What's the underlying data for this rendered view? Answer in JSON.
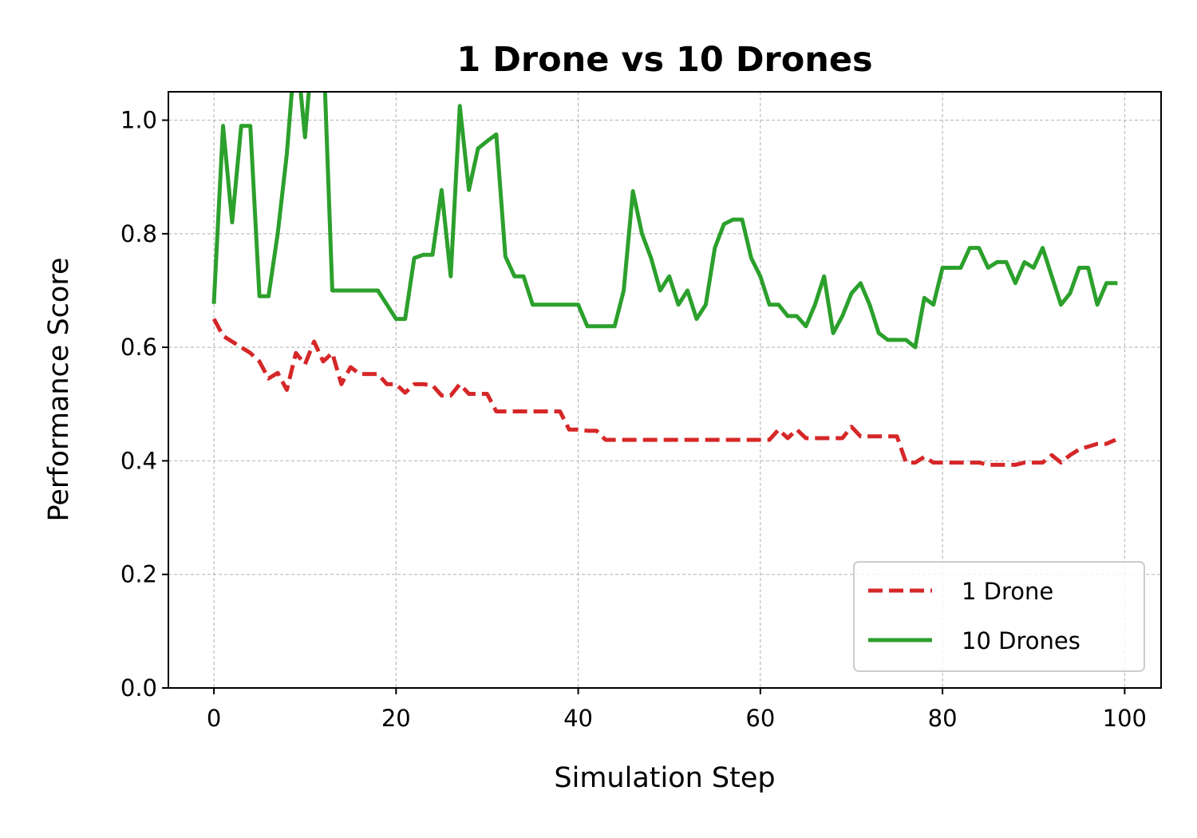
{
  "chart_data": {
    "type": "line",
    "title": "1 Drone vs 10 Drones",
    "xlabel": "Simulation Step",
    "ylabel": "Performance Score",
    "xlim": [
      -5,
      104
    ],
    "ylim": [
      0,
      1.05
    ],
    "xticks": [
      0,
      20,
      40,
      60,
      80,
      100
    ],
    "yticks": [
      0.0,
      0.2,
      0.4,
      0.6,
      0.8,
      1.0
    ],
    "xtick_labels": [
      "0",
      "20",
      "40",
      "60",
      "80",
      "100"
    ],
    "ytick_labels": [
      "0.0",
      "0.2",
      "0.4",
      "0.6",
      "0.8",
      "1.0"
    ],
    "grid": true,
    "legend_position": "lower-right",
    "x": [
      0,
      1,
      2,
      3,
      4,
      5,
      6,
      7,
      8,
      9,
      10,
      11,
      12,
      13,
      14,
      15,
      16,
      17,
      18,
      19,
      20,
      21,
      22,
      23,
      24,
      25,
      26,
      27,
      28,
      29,
      30,
      31,
      32,
      33,
      34,
      35,
      36,
      37,
      38,
      39,
      40,
      41,
      42,
      43,
      44,
      45,
      46,
      47,
      48,
      49,
      50,
      51,
      52,
      53,
      54,
      55,
      56,
      57,
      58,
      59,
      60,
      61,
      62,
      63,
      64,
      65,
      66,
      67,
      68,
      69,
      70,
      71,
      72,
      73,
      74,
      75,
      76,
      77,
      78,
      79,
      80,
      81,
      82,
      83,
      84,
      85,
      86,
      87,
      88,
      89,
      90,
      91,
      92,
      93,
      94,
      95,
      96,
      97,
      98,
      99
    ],
    "series": [
      {
        "name": "1 Drone",
        "color": "#d62728",
        "style": "dashed",
        "values": [
          0.65,
          0.62,
          0.61,
          0.6,
          0.59,
          0.575,
          0.545,
          0.555,
          0.525,
          0.59,
          0.57,
          0.61,
          0.575,
          0.59,
          0.535,
          0.565,
          0.553,
          0.553,
          0.553,
          0.535,
          0.535,
          0.52,
          0.535,
          0.535,
          0.533,
          0.515,
          0.515,
          0.535,
          0.518,
          0.518,
          0.518,
          0.487,
          0.487,
          0.487,
          0.487,
          0.487,
          0.487,
          0.487,
          0.487,
          0.455,
          0.455,
          0.453,
          0.453,
          0.437,
          0.437,
          0.437,
          0.437,
          0.437,
          0.437,
          0.437,
          0.437,
          0.437,
          0.437,
          0.437,
          0.437,
          0.437,
          0.437,
          0.437,
          0.437,
          0.437,
          0.437,
          0.437,
          0.455,
          0.44,
          0.455,
          0.44,
          0.44,
          0.44,
          0.44,
          0.44,
          0.46,
          0.443,
          0.443,
          0.443,
          0.443,
          0.443,
          0.397,
          0.397,
          0.407,
          0.397,
          0.397,
          0.397,
          0.397,
          0.397,
          0.397,
          0.393,
          0.393,
          0.393,
          0.393,
          0.397,
          0.397,
          0.397,
          0.41,
          0.397,
          0.41,
          0.42,
          0.425,
          0.43,
          0.43,
          0.437
        ]
      },
      {
        "name": "10 Drones",
        "color": "#2ca02c",
        "style": "solid",
        "values": [
          0.68,
          0.99,
          0.82,
          0.99,
          0.99,
          0.69,
          0.69,
          0.8,
          0.94,
          1.14,
          0.97,
          1.16,
          1.14,
          0.7,
          0.7,
          0.7,
          0.7,
          0.7,
          0.7,
          0.675,
          0.65,
          0.65,
          0.757,
          0.763,
          0.763,
          0.877,
          0.725,
          1.025,
          0.877,
          0.95,
          0.963,
          0.975,
          0.76,
          0.725,
          0.725,
          0.675,
          0.675,
          0.675,
          0.675,
          0.675,
          0.675,
          0.637,
          0.637,
          0.637,
          0.637,
          0.7,
          0.875,
          0.8,
          0.757,
          0.7,
          0.725,
          0.675,
          0.7,
          0.65,
          0.675,
          0.775,
          0.817,
          0.825,
          0.825,
          0.757,
          0.725,
          0.675,
          0.675,
          0.655,
          0.655,
          0.637,
          0.675,
          0.725,
          0.625,
          0.655,
          0.695,
          0.713,
          0.675,
          0.625,
          0.613,
          0.613,
          0.613,
          0.6,
          0.687,
          0.675,
          0.74,
          0.74,
          0.74,
          0.775,
          0.775,
          0.74,
          0.75,
          0.75,
          0.713,
          0.75,
          0.74,
          0.775,
          0.725,
          0.675,
          0.695,
          0.74,
          0.74,
          0.675,
          0.713,
          0.713
        ]
      }
    ]
  }
}
